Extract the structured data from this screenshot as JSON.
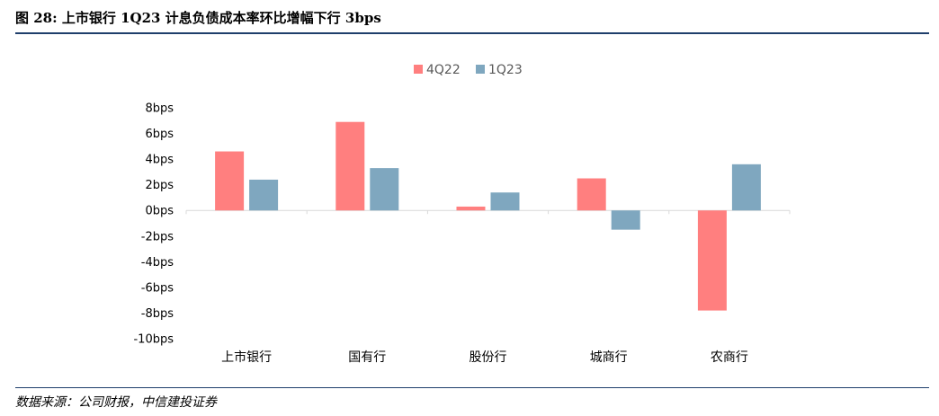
{
  "figure": {
    "title": "图 28:  上市银行 1Q23 计息负债成本率环比增幅下行 3bps",
    "source": "数据来源：公司财报，中信建投证券"
  },
  "chart_data": {
    "type": "bar",
    "title": "",
    "xlabel": "",
    "ylabel": "",
    "categories": [
      "上市银行",
      "国有行",
      "股份行",
      "城商行",
      "农商行"
    ],
    "series": [
      {
        "name": "4Q22",
        "values": [
          4.6,
          6.9,
          0.3,
          2.5,
          -7.8
        ]
      },
      {
        "name": "1Q23",
        "values": [
          2.4,
          3.3,
          1.4,
          -1.5,
          3.6
        ]
      }
    ],
    "ylim": [
      -10,
      8
    ],
    "yticks": [
      8,
      6,
      4,
      2,
      0,
      -2,
      -4,
      -6,
      -8,
      -10
    ],
    "ytick_labels": [
      "8bps",
      "6bps",
      "4bps",
      "2bps",
      "0bps",
      "-2bps",
      "-4bps",
      "-6bps",
      "-8bps",
      "-10bps"
    ],
    "grid": false,
    "legend_position": "top-center",
    "colors": [
      "#ff7f7f",
      "#7fa7bf"
    ]
  }
}
